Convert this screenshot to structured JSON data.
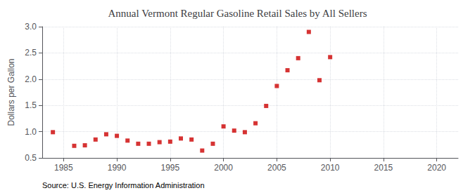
{
  "chart_data": {
    "type": "scatter",
    "title": "Annual Vermont Regular Gasoline Retail Sales by All Sellers",
    "ylabel": "Dollars per Gallon",
    "source": "Source: U.S. Energy Information Administration",
    "x": [
      1984,
      1986,
      1987,
      1988,
      1989,
      1990,
      1991,
      1992,
      1993,
      1994,
      1995,
      1996,
      1997,
      1998,
      1999,
      2000,
      2001,
      2002,
      2003,
      2004,
      2005,
      2006,
      2007,
      2008,
      2009,
      2010
    ],
    "values": [
      0.99,
      0.73,
      0.74,
      0.85,
      0.95,
      0.92,
      0.83,
      0.77,
      0.77,
      0.8,
      0.81,
      0.87,
      0.85,
      0.64,
      0.77,
      1.1,
      1.02,
      0.99,
      1.16,
      1.49,
      1.87,
      2.17,
      2.4,
      2.9,
      1.98,
      2.42
    ],
    "color": "#cc0000",
    "marker": "square",
    "xlim": [
      1983,
      2022
    ],
    "ylim": [
      0.5,
      3.0
    ],
    "xticks": [
      1985,
      1990,
      1995,
      2000,
      2005,
      2010,
      2015,
      2020
    ],
    "yticks": [
      0.5,
      {
        "value": 1.0,
        "label": "1.0"
      },
      1.5,
      {
        "value": 2.0,
        "label": "2.0"
      },
      2.5,
      {
        "value": 3.0,
        "label": "3.0"
      }
    ],
    "grid": true
  }
}
